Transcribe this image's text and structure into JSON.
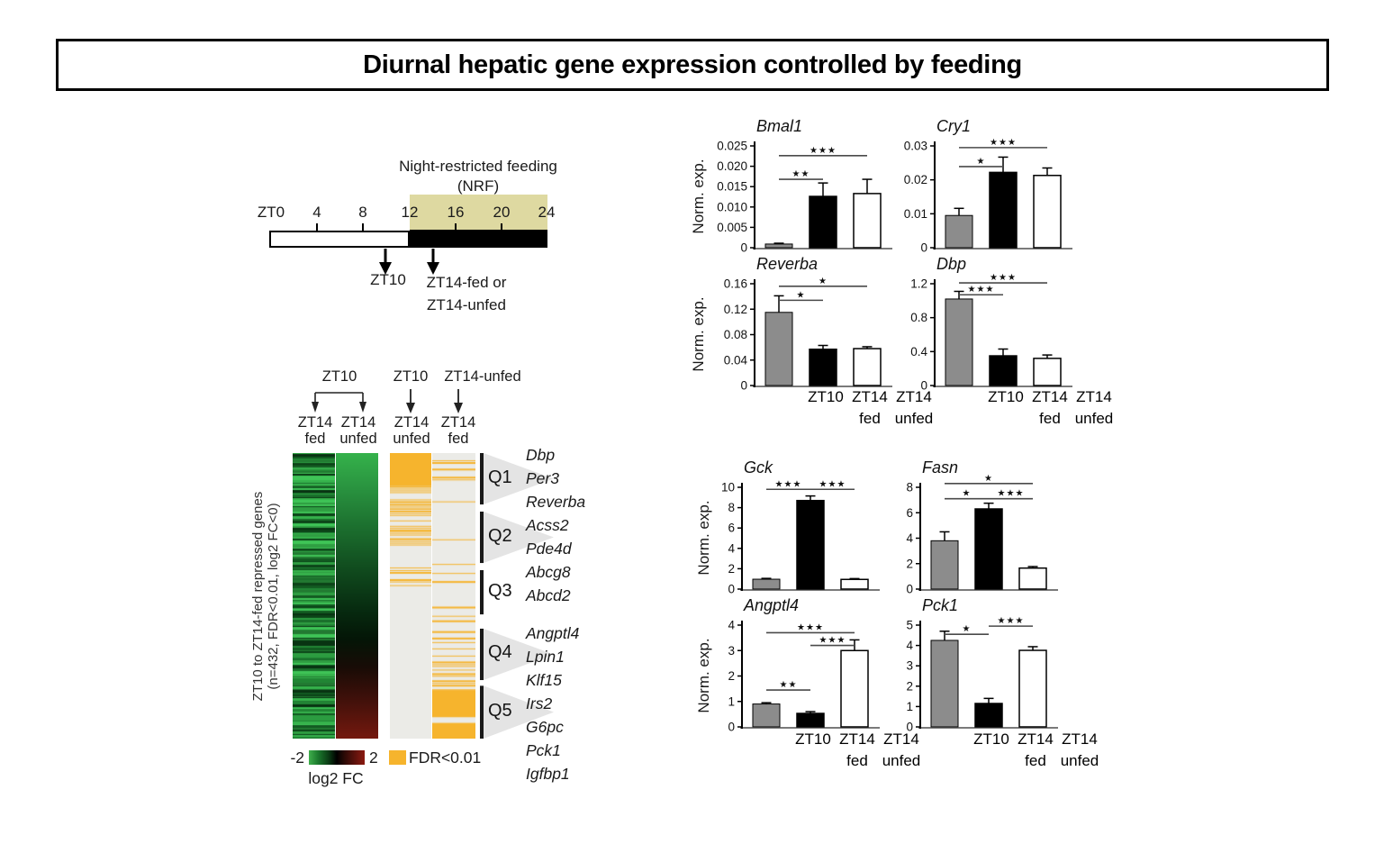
{
  "figure_title": "Diurnal hepatic gene expression controlled by feeding",
  "timeline": {
    "nrf_line1": "Night-restricted feeding",
    "nrf_line2": "(NRF)",
    "ticks": [
      "ZT0",
      "4",
      "8",
      "12",
      "16",
      "20",
      "24"
    ],
    "arrow1_label": "ZT10",
    "arrow2_line1": "ZT14-fed or",
    "arrow2_line2": "ZT14-unfed",
    "nrf_box_color": "#ded9a1",
    "night_bar_color": "#000000",
    "day_bar_color": "#ffffff"
  },
  "chart_data": {
    "ylabel": "Norm. exp.",
    "x_categories": {
      "line1": [
        "ZT10",
        "ZT14",
        "ZT14"
      ],
      "line2": [
        "fed",
        "unfed"
      ]
    },
    "bar_colors": [
      "#8c8c8c",
      "#000000",
      "#ffffff"
    ],
    "bar_charts": [
      {
        "type": "bar",
        "id": "bmal1",
        "title": "Bmal1",
        "categories": [
          "ZT10",
          "ZT14 fed",
          "ZT14 unfed"
        ],
        "values": [
          0.0009,
          0.0126,
          0.0133
        ],
        "errors": [
          0.0002,
          0.0033,
          0.0035
        ],
        "ylim": [
          0,
          0.025
        ],
        "yticks": [
          "0.025",
          "0.020",
          "0.015",
          "0.010",
          "0.005",
          "0"
        ],
        "significance": [
          {
            "between": [
              0,
              1
            ],
            "stars": "**",
            "line_y": 0.0168
          },
          {
            "between": [
              0,
              2
            ],
            "stars": "***",
            "line_y": 0.0226
          }
        ]
      },
      {
        "type": "bar",
        "id": "cry1",
        "title": "Cry1",
        "categories": [
          "ZT10",
          "ZT14 fed",
          "ZT14 unfed"
        ],
        "values": [
          0.0095,
          0.0222,
          0.0213
        ],
        "errors": [
          0.0021,
          0.0045,
          0.0022
        ],
        "ylim": [
          0,
          0.03
        ],
        "yticks": [
          "0.03",
          "0.02",
          "0.01",
          "0"
        ],
        "significance": [
          {
            "between": [
              0,
              1
            ],
            "stars": "*",
            "line_y": 0.0239
          },
          {
            "between": [
              0,
              2
            ],
            "stars": "***",
            "line_y": 0.0295
          }
        ]
      },
      {
        "type": "bar",
        "id": "reverba",
        "title": "Reverba",
        "categories": [
          "ZT10",
          "ZT14 fed",
          "ZT14 unfed"
        ],
        "values": [
          0.115,
          0.057,
          0.058
        ],
        "errors": [
          0.026,
          0.006,
          0.003
        ],
        "ylim": [
          0,
          0.16
        ],
        "yticks": [
          "0.16",
          "0.12",
          "0.08",
          "0.04",
          "0"
        ],
        "significance": [
          {
            "between": [
              0,
              1
            ],
            "stars": "*",
            "line_y": 0.134
          },
          {
            "between": [
              0,
              2
            ],
            "stars": "*",
            "line_y": 0.156
          }
        ]
      },
      {
        "type": "bar",
        "id": "dbp",
        "title": "Dbp",
        "categories": [
          "ZT10",
          "ZT14 fed",
          "ZT14 unfed"
        ],
        "values": [
          1.02,
          0.35,
          0.32
        ],
        "errors": [
          0.09,
          0.08,
          0.04
        ],
        "ylim": [
          0,
          1.2
        ],
        "yticks": [
          "1.2",
          "0.8",
          "0.4",
          "0"
        ],
        "significance": [
          {
            "between": [
              0,
              1
            ],
            "stars": "***",
            "line_y": 1.07
          },
          {
            "between": [
              0,
              2
            ],
            "stars": "***",
            "line_y": 1.21
          }
        ]
      },
      {
        "type": "bar",
        "id": "gck",
        "title": "Gck",
        "categories": [
          "ZT10",
          "ZT14 fed",
          "ZT14 unfed"
        ],
        "values": [
          0.97,
          8.7,
          0.95
        ],
        "errors": [
          0.08,
          0.45,
          0.08
        ],
        "ylim": [
          0,
          10
        ],
        "yticks": [
          "10",
          "8",
          "6",
          "4",
          "2",
          "0"
        ],
        "significance": [
          {
            "between": [
              0,
              1
            ],
            "stars": "***",
            "line_y": 9.8
          },
          {
            "between": [
              1,
              2
            ],
            "stars": "***",
            "line_y": 9.8
          }
        ]
      },
      {
        "type": "bar",
        "id": "fasn",
        "title": "Fasn",
        "categories": [
          "ZT10",
          "ZT14 fed",
          "ZT14 unfed"
        ],
        "values": [
          3.8,
          6.3,
          1.65
        ],
        "errors": [
          0.7,
          0.45,
          0.12
        ],
        "ylim": [
          0,
          8
        ],
        "yticks": [
          "8",
          "6",
          "4",
          "2",
          "0"
        ],
        "significance": [
          {
            "between": [
              0,
              1
            ],
            "stars": "*",
            "line_y": 7.1
          },
          {
            "between": [
              1,
              2
            ],
            "stars": "***",
            "line_y": 7.1
          },
          {
            "between": [
              0,
              2
            ],
            "stars": "*",
            "line_y": 8.3
          }
        ]
      },
      {
        "type": "bar",
        "id": "angptl4",
        "title": "Angptl4",
        "categories": [
          "ZT10",
          "ZT14 fed",
          "ZT14 unfed"
        ],
        "values": [
          0.9,
          0.53,
          3.0
        ],
        "errors": [
          0.05,
          0.07,
          0.42
        ],
        "ylim": [
          0,
          4
        ],
        "yticks": [
          "4",
          "3",
          "2",
          "1",
          "0"
        ],
        "significance": [
          {
            "between": [
              0,
              1
            ],
            "stars": "**",
            "line_y": 1.45
          },
          {
            "between": [
              1,
              2
            ],
            "stars": "***",
            "line_y": 3.2
          },
          {
            "between": [
              0,
              2
            ],
            "stars": "***",
            "line_y": 3.7
          }
        ]
      },
      {
        "type": "bar",
        "id": "pck1",
        "title": "Pck1",
        "categories": [
          "ZT10",
          "ZT14 fed",
          "ZT14 unfed"
        ],
        "values": [
          4.25,
          1.15,
          3.76
        ],
        "errors": [
          0.45,
          0.25,
          0.18
        ],
        "ylim": [
          0,
          5
        ],
        "yticks": [
          "5",
          "4",
          "3",
          "2",
          "1",
          "0"
        ],
        "significance": [
          {
            "between": [
              0,
              1
            ],
            "stars": "*",
            "line_y": 4.55
          },
          {
            "between": [
              1,
              2
            ],
            "stars": "***",
            "line_y": 4.95
          }
        ]
      }
    ],
    "heatmap": {
      "type": "heatmap",
      "top_labels": [
        "ZT10",
        "ZT10",
        "ZT14-unfed"
      ],
      "col_headers": [
        {
          "l1": "ZT14",
          "l2": "fed"
        },
        {
          "l1": "ZT14",
          "l2": "unfed"
        },
        {
          "l1": "ZT14",
          "l2": "unfed"
        },
        {
          "l1": "ZT14",
          "l2": "fed"
        }
      ],
      "side_label_line1": "ZT10 to ZT14-fed repressed genes",
      "side_label_line2": "(n=432, FDR<0.01, log2 FC<0)",
      "clusters": [
        {
          "label": "Q1",
          "genes": [
            "Dbp",
            "Per3",
            "Reverba"
          ],
          "from": 0.0,
          "to": 0.18,
          "wedge": true
        },
        {
          "label": "Q2",
          "genes": [
            "Acss2",
            "Pde4d",
            "Abcg8"
          ],
          "from": 0.205,
          "to": 0.385,
          "wedge": true
        },
        {
          "label": "Q3",
          "genes": [
            "Abcd2"
          ],
          "from": 0.41,
          "to": 0.565,
          "wedge": false
        },
        {
          "label": "Q4",
          "genes": [
            "Angptl4",
            "Lpin1",
            "Klf15"
          ],
          "from": 0.615,
          "to": 0.795,
          "wedge": true
        },
        {
          "label": "Q5",
          "genes": [
            "Irs2",
            "G6pc",
            "Pck1",
            "Igfbp1"
          ],
          "from": 0.815,
          "to": 1.0,
          "wedge": true
        }
      ],
      "legend": {
        "min": "-2",
        "max": "2",
        "label": "log2 FC",
        "fdr_label": "FDR<0.01"
      },
      "colors": {
        "fdr": "#f6b42d",
        "fdr_bg": "#ebebe7",
        "green_palette": [
          "#36b24c",
          "#2b9c40",
          "#218534",
          "#1a6f2b",
          "#125a21",
          "#0c4418",
          "#083312",
          "#227a32",
          "#2f9e42",
          "#3fc457"
        ],
        "gradient": [
          [
            0,
            "#35b24b"
          ],
          [
            0.12,
            "#2a9440"
          ],
          [
            0.25,
            "#1d7230"
          ],
          [
            0.4,
            "#114d1f"
          ],
          [
            0.55,
            "#072b10"
          ],
          [
            0.65,
            "#041607"
          ],
          [
            0.75,
            "#190c06"
          ],
          [
            0.85,
            "#3c100a"
          ],
          [
            1,
            "#75190f"
          ]
        ]
      },
      "fdr_col_unfed": [
        [
          0,
          0.115,
          1
        ],
        [
          0.115,
          0.195,
          0.7
        ],
        [
          0.195,
          0.27,
          0.45
        ],
        [
          0.27,
          0.325,
          0.8
        ],
        [
          0.325,
          0.41,
          0.4
        ],
        [
          0.41,
          0.45,
          0.22
        ],
        [
          0.45,
          0.49,
          0.18
        ],
        [
          0.49,
          1,
          0
        ]
      ],
      "fdr_col_fed": [
        [
          0,
          0.045,
          0.1
        ],
        [
          0.045,
          0.125,
          0.2
        ],
        [
          0.125,
          0.28,
          0.06
        ],
        [
          0.28,
          0.36,
          0.16
        ],
        [
          0.36,
          0.5,
          0.25
        ],
        [
          0.5,
          0.57,
          0.2
        ],
        [
          0.57,
          0.64,
          0.35
        ],
        [
          0.64,
          0.73,
          0.5
        ],
        [
          0.73,
          0.78,
          0.75
        ],
        [
          0.78,
          0.83,
          0.55
        ],
        [
          0.83,
          0.925,
          0.97
        ],
        [
          0.925,
          0.945,
          0.3
        ],
        [
          0.945,
          1,
          0.97
        ]
      ]
    }
  }
}
